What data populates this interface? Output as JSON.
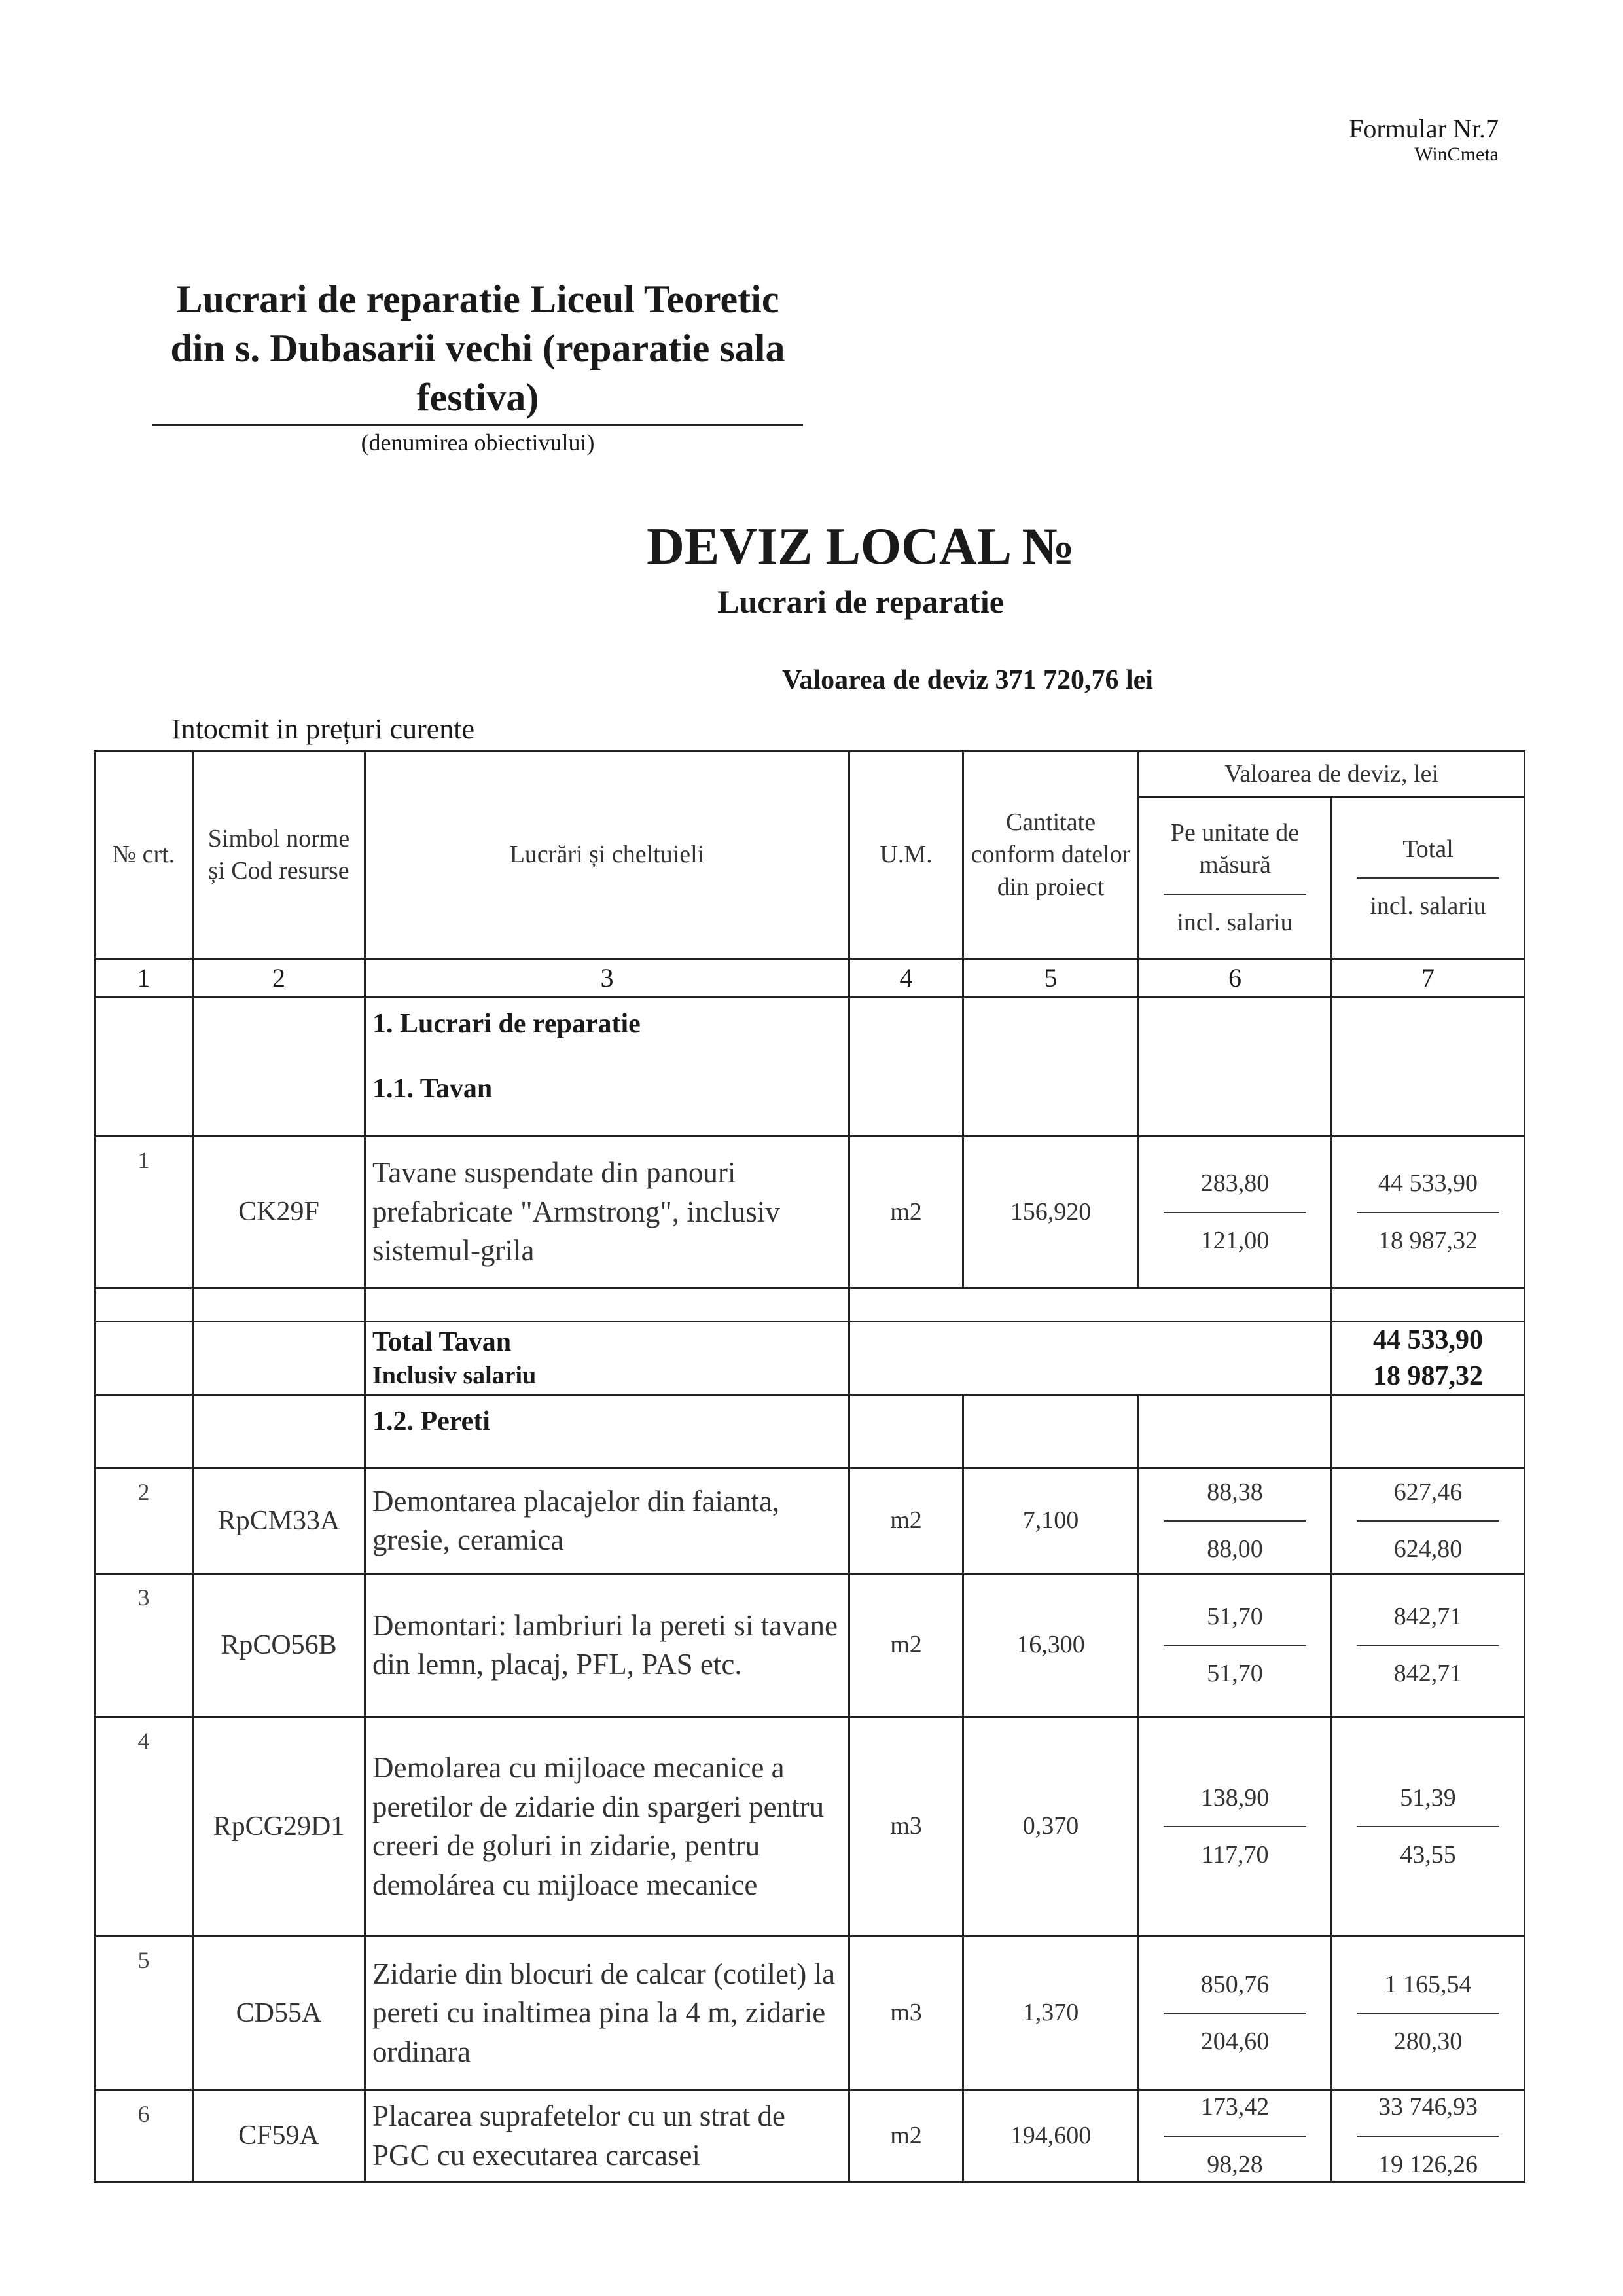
{
  "form": {
    "label": "Formular Nr.7",
    "software": "WinCmeta"
  },
  "object": {
    "name": "Lucrari de reparatie Liceul Teoretic din s. Dubasarii vechi (reparatie sala festiva)",
    "caption": "(denumirea obiectivului)"
  },
  "document": {
    "title": "DEVIZ  LOCAL №",
    "subtitle": "Lucrari de reparatie",
    "value": "Valoarea de deviz  371 720,76 lei",
    "prices_note": "Intocmit in prețuri  curente"
  },
  "table": {
    "headers": {
      "nr": "№ crt.",
      "simbol": "Simbol norme și Cod resurse",
      "lucrari": "Lucrări și cheltuieli",
      "um": "U.M.",
      "cantitate": "Cantitate conform datelor din proiect",
      "valoare_group": "Valoarea de deviz, lei",
      "per_unit": "Pe unitate de măsură",
      "per_unit_sub": "incl. salariu",
      "total": "Total",
      "total_sub": "incl. salariu"
    },
    "column_numbers": [
      "1",
      "2",
      "3",
      "4",
      "5",
      "6",
      "7"
    ],
    "section1": "1. Lucrari de reparatie",
    "subsection1": "1.1. Tavan",
    "subsection2": "1.2. Pereti",
    "total_tavan": {
      "label": "Total Tavan",
      "sublabel": "Inclusiv salariu",
      "total": "44 533,90",
      "salary": "18 987,32"
    },
    "rows": [
      {
        "nr": "1",
        "code": "CK29F",
        "desc": "Tavane suspendate din panouri prefabricate \"Armstrong\", inclusiv sistemul-grila",
        "um": "m2",
        "qty": "156,920",
        "unit": "283,80",
        "unit_sal": "121,00",
        "total": "44 533,90",
        "total_sal": "18 987,32"
      },
      {
        "nr": "2",
        "code": "RpCM33A",
        "desc": "Demontarea placajelor din faianta, gresie, ceramica",
        "um": "m2",
        "qty": "7,100",
        "unit": "88,38",
        "unit_sal": "88,00",
        "total": "627,46",
        "total_sal": "624,80"
      },
      {
        "nr": "3",
        "code": "RpCO56B",
        "desc": "Demontari: lambriuri la pereti si tavane din lemn, placaj, PFL, PAS etc.",
        "um": "m2",
        "qty": "16,300",
        "unit": "51,70",
        "unit_sal": "51,70",
        "total": "842,71",
        "total_sal": "842,71"
      },
      {
        "nr": "4",
        "code": "RpCG29D1",
        "desc": "Demolarea cu mijloace mecanice a peretilor de zidarie din spargeri pentru creeri de goluri in zidarie, pentru demolárea cu mijloace mecanice",
        "um": "m3",
        "qty": "0,370",
        "unit": "138,90",
        "unit_sal": "117,70",
        "total": "51,39",
        "total_sal": "43,55"
      },
      {
        "nr": "5",
        "code": "CD55A",
        "desc": "Zidarie din blocuri de calcar (cotilet)  la pereti cu inaltimea pina la 4 m, zidarie ordinara",
        "um": "m3",
        "qty": "1,370",
        "unit": "850,76",
        "unit_sal": "204,60",
        "total": "1 165,54",
        "total_sal": "280,30"
      },
      {
        "nr": "6",
        "code": "CF59A",
        "desc": "Placarea suprafetelor cu un strat de PGC cu executarea carcasei",
        "um": "m2",
        "qty": "194,600",
        "unit": "173,42",
        "unit_sal": "98,28",
        "total": "33 746,93",
        "total_sal": "19 126,26"
      }
    ]
  }
}
